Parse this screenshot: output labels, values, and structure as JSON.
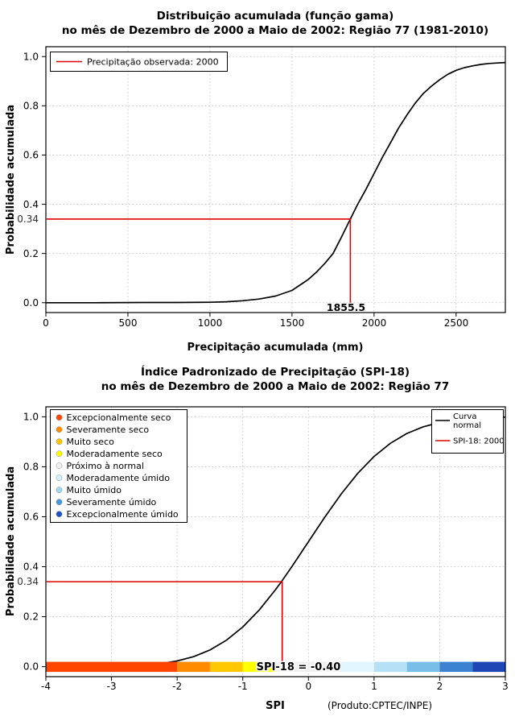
{
  "chart_data": [
    {
      "id": "gamma-cdf",
      "type": "line",
      "title": [
        "Distribuição acumulada (função gama)",
        "no mês de Dezembro de 2000 a Maio de 2002: Região 77 (1981-2010)"
      ],
      "xlabel": "Precipitação acumulada (mm)",
      "ylabel": "Probabilidade acumulada",
      "xlim": [
        0,
        2800
      ],
      "ylim": [
        0,
        1
      ],
      "grid": true,
      "xticks": [
        0,
        500,
        1000,
        1500,
        2000,
        2500
      ],
      "xtick_labels": [
        "0",
        "500",
        "1000",
        "1500",
        "2000",
        "2500"
      ],
      "yticks": [
        0,
        0.2,
        0.4,
        0.6,
        0.8,
        1
      ],
      "ytick_labels": [
        "0.0",
        "0.2",
        "0.4",
        "0.6",
        "0.8",
        "1.0"
      ],
      "curve_color": "#000000",
      "legend": {
        "label": "Precipitação observada: 2000",
        "color": "#dd0000"
      },
      "annotation": {
        "x": 1855.5,
        "y": 0.34,
        "x_label": "1855.5",
        "y_label": "0.34",
        "color": "#dd0000"
      },
      "curve": {
        "x": [
          0,
          300,
          600,
          800,
          1000,
          1100,
          1200,
          1300,
          1400,
          1500,
          1600,
          1650,
          1700,
          1750,
          1800,
          1855.5,
          1900,
          1950,
          2000,
          2050,
          2100,
          2150,
          2200,
          2250,
          2300,
          2350,
          2400,
          2450,
          2500,
          2550,
          2600,
          2650,
          2700,
          2750,
          2800
        ],
        "y": [
          0.0,
          0.0,
          0.001,
          0.001,
          0.002,
          0.004,
          0.008,
          0.015,
          0.027,
          0.05,
          0.095,
          0.125,
          0.16,
          0.2,
          0.265,
          0.34,
          0.4,
          0.46,
          0.525,
          0.59,
          0.65,
          0.71,
          0.762,
          0.81,
          0.85,
          0.88,
          0.906,
          0.928,
          0.944,
          0.955,
          0.962,
          0.968,
          0.972,
          0.974,
          0.976
        ]
      }
    },
    {
      "id": "spi-cdf",
      "type": "line",
      "title": [
        "Índice Padronizado de Precipitação (SPI-18)",
        "no mês de Dezembro de 2000 a Maio de 2002: Região 77"
      ],
      "xlabel": "SPI",
      "ylabel": "Probabilidade acumulada",
      "footnote": "(Produto:CPTEC/INPE)",
      "xlim": [
        -4,
        3
      ],
      "ylim": [
        0,
        1
      ],
      "grid": true,
      "xticks": [
        -4,
        -3,
        -2,
        -1,
        0,
        1,
        2,
        3
      ],
      "xtick_labels": [
        "-4",
        "-3",
        "-2",
        "-1",
        "0",
        "1",
        "2",
        "3"
      ],
      "yticks": [
        0,
        0.2,
        0.4,
        0.6,
        0.8,
        1
      ],
      "ytick_labels": [
        "0.0",
        "0.2",
        "0.4",
        "0.6",
        "0.8",
        "1.0"
      ],
      "curve_color": "#000000",
      "categories": [
        {
          "label": "Excepcionalmente seco",
          "color": "#ff4500"
        },
        {
          "label": "Severamente seco",
          "color": "#ff8c00"
        },
        {
          "label": "Muito seco",
          "color": "#ffc800"
        },
        {
          "label": "Moderadamente seco",
          "color": "#ffff00"
        },
        {
          "label": "Próximo à normal",
          "color": "#f0f0f0"
        },
        {
          "label": "Moderadamente úmido",
          "color": "#d2f0ff"
        },
        {
          "label": "Muito úmido",
          "color": "#a0d8f0"
        },
        {
          "label": "Severamente úmido",
          "color": "#4696dc"
        },
        {
          "label": "Excepcionalmente úmido",
          "color": "#1e50c8"
        }
      ],
      "curve_legend": {
        "normal": {
          "label_line1": "Curva",
          "label_line2": "normal",
          "color": "#000000"
        },
        "observed": {
          "label": "SPI-18: 2000",
          "color": "#dd0000"
        }
      },
      "colorbar": [
        {
          "from": -4,
          "to": -2,
          "color": "#ff4500"
        },
        {
          "from": -2,
          "to": -1.5,
          "color": "#ff8c00"
        },
        {
          "from": -1.5,
          "to": -1,
          "color": "#ffc800"
        },
        {
          "from": -1,
          "to": -0.5,
          "color": "#ffff00"
        },
        {
          "from": -0.5,
          "to": 0.5,
          "color": "#f0f0f0"
        },
        {
          "from": 0.5,
          "to": 1,
          "color": "#e1f5ff"
        },
        {
          "from": 1,
          "to": 1.5,
          "color": "#b4e1f5"
        },
        {
          "from": 1.5,
          "to": 2,
          "color": "#78bee8"
        },
        {
          "from": 2,
          "to": 2.5,
          "color": "#3c82d2"
        },
        {
          "from": 2.5,
          "to": 3,
          "color": "#1e46b4"
        }
      ],
      "annotation": {
        "x": -0.4,
        "y": 0.34,
        "y_label": "0.34",
        "bar_label": "SPI-18 = -0.40",
        "color": "#dd0000"
      },
      "curve": {
        "x": [
          -4,
          -3.5,
          -3,
          -2.75,
          -2.5,
          -2.25,
          -2,
          -1.75,
          -1.5,
          -1.25,
          -1,
          -0.75,
          -0.5,
          -0.4,
          -0.25,
          0,
          0.25,
          0.5,
          0.75,
          1,
          1.25,
          1.5,
          1.75,
          2,
          2.25,
          2.5,
          2.75,
          3
        ],
        "y": [
          0.0,
          0.0002,
          0.0013,
          0.003,
          0.0062,
          0.0122,
          0.0228,
          0.0401,
          0.0668,
          0.1056,
          0.1587,
          0.2266,
          0.3085,
          0.3446,
          0.4013,
          0.5,
          0.5987,
          0.6915,
          0.7734,
          0.8413,
          0.8944,
          0.9332,
          0.9599,
          0.9772,
          0.9878,
          0.9938,
          0.997,
          0.9987
        ]
      }
    }
  ]
}
